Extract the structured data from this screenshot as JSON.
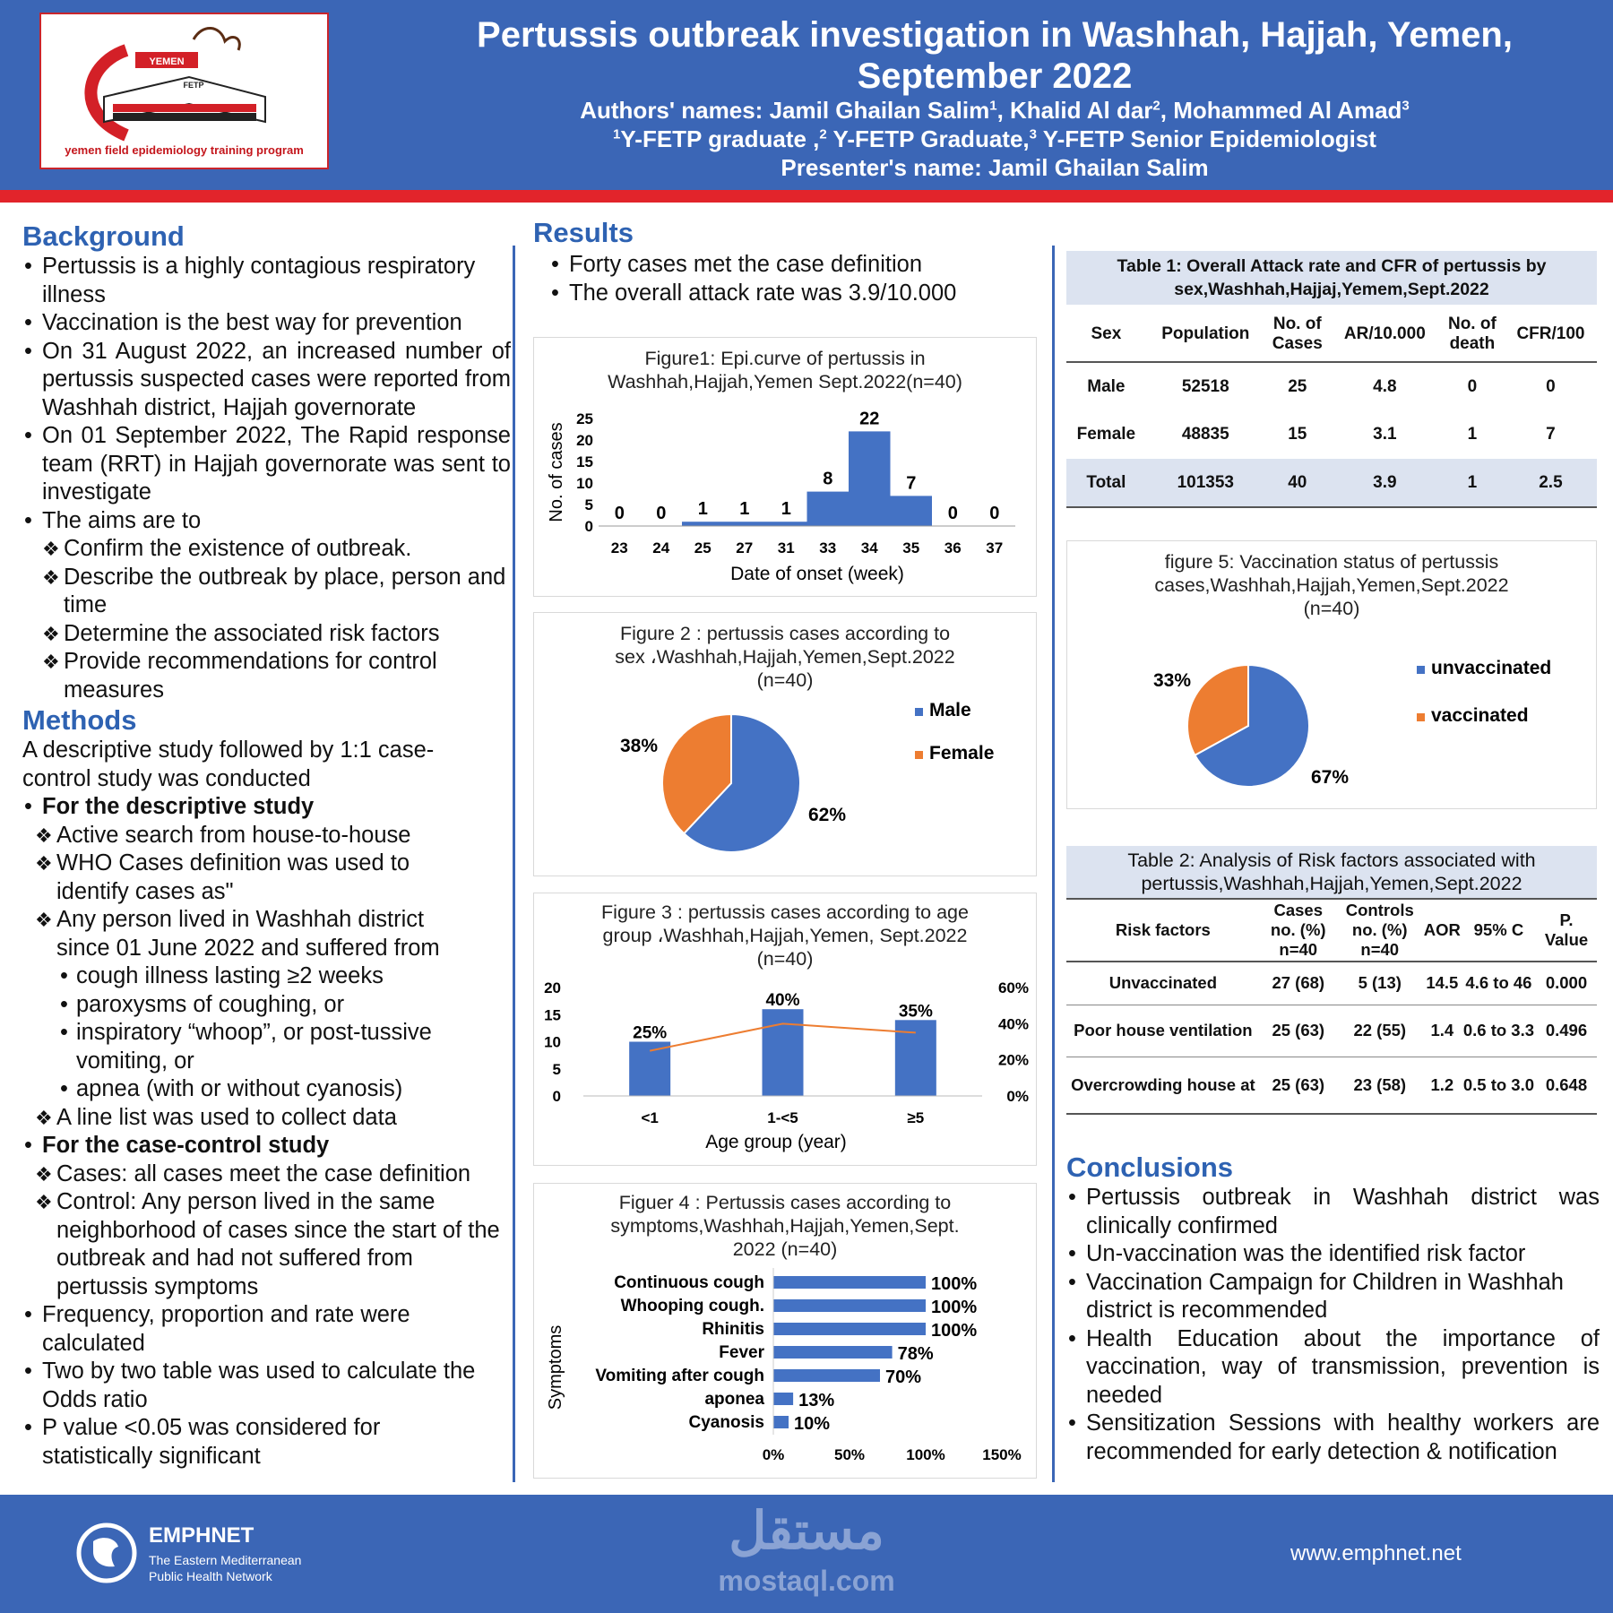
{
  "header": {
    "logo_text": "YEMEN",
    "logo_tag": "FETP",
    "logo_caption": "yemen field epidemiology training program",
    "title_line1": "Pertussis outbreak investigation in Washhah, Hajjah, Yemen,",
    "title_line2": "September 2022",
    "authors_prefix": "Authors' names: ",
    "authors": [
      {
        "name": "Jamil Ghailan Salim",
        "sup": "1",
        "sep": ", "
      },
      {
        "name": "Khalid Al dar",
        "sup": "2",
        "sep": ", "
      },
      {
        "name": "Mohammed Al Amad",
        "sup": "3",
        "sep": ""
      }
    ],
    "affil": [
      {
        "sup": "1",
        "text": "Y-FETP graduate ,"
      },
      {
        "sup": "2",
        "text": " Y-FETP Graduate,"
      },
      {
        "sup": "3",
        "text": " Y-FETP Senior Epidemiologist"
      }
    ],
    "presenter": "Presenter's name: Jamil Ghailan Salim"
  },
  "background": {
    "heading": "Background",
    "b1": "Pertussis is a highly contagious respiratory illness",
    "b2": "Vaccination is the best way for prevention",
    "b3": "On 31 August 2022, an increased number of pertussis suspected cases were reported from Washhah district, Hajjah governorate",
    "b4": "On 01 September 2022, The Rapid response team (RRT) in Hajjah governorate was sent to investigate",
    "b5": "The aims are to",
    "aims": [
      "Confirm the existence of outbreak.",
      "Describe the outbreak by place, person and time",
      "Determine the associated risk factors",
      "Provide recommendations for control measures"
    ]
  },
  "methods": {
    "heading": "Methods",
    "intro": "A descriptive study followed by 1:1 case-control study was conducted",
    "desc_head": "For the descriptive study",
    "d1": "Active search from house-to-house",
    "d2": "WHO Cases definition was used to identify cases as\"",
    "d3": "Any person lived in Washhah district since 01 June 2022 and suffered from",
    "s1": "cough illness lasting ≥2 weeks",
    "s2": "paroxysms of coughing, or",
    "s3": " inspiratory “whoop”, or post-tussive vomiting, or",
    "s4": "apnea (with or without cyanosis)",
    "d4": "A line list was used to collect data",
    "cc_head": "For the case-control study",
    "c1": "Cases: all cases meet the case definition",
    "c2": "Control: Any person lived in the same neighborhood of cases since the start of the outbreak and had not suffered from pertussis   symptoms",
    "m1": "Frequency, proportion and rate were calculated",
    "m2": "Two by two table was used to calculate the Odds ratio",
    "m3": "P value <0.05 was considered for statistically significant"
  },
  "results": {
    "heading": "Results",
    "r1": "Forty cases met the case definition",
    "r2": "The overall attack rate was 3.9/10.000"
  },
  "fig1": {
    "title1": "Figure1: Epi.curve of pertussis in",
    "title2": "Washhah,Hajjah,Yemen Sept.2022(n=40)",
    "ylabel": "No. of cases",
    "xlabel": "Date of onset (week)",
    "yticks": [
      "25",
      "20",
      "15",
      "10",
      "5",
      "0"
    ]
  },
  "fig2": {
    "title1": "Figure 2 : pertussis cases according to",
    "title2": "sex ،Washhah,Hajjah,Yemen,Sept.2022",
    "title3": "(n=40)"
  },
  "fig3": {
    "title1": "Figure 3 : pertussis cases according to  age",
    "title2": "group ،Washhah,Hajjah,Yemen, Sept.2022",
    "title3": "(n=40)",
    "xlabel": "Age group (year)",
    "yticks": [
      "20",
      "15",
      "10",
      "5",
      "0"
    ],
    "y2ticks": [
      "60%",
      "40%",
      "20%",
      "0%"
    ]
  },
  "fig4": {
    "title1": "Figuer 4 : Pertussis cases according to",
    "title2": "symptoms,Washhah,Hajjah,Yemen,Sept.",
    "title3": "2022 (n=40)",
    "ylabel": "Symptoms",
    "xticks": [
      "0%",
      "50%",
      "100%",
      "150%"
    ]
  },
  "fig5": {
    "title1": "figure 5: Vaccination status of pertussis",
    "title2": "cases,Washhah,Hajjah,Yemen,Sept.2022",
    "title3": "(n=40)"
  },
  "table1": {
    "title": "Table 1: Overall Attack rate and CFR of pertussis by sex,Washhah,Hajjaj,Yemem,Sept.2022",
    "headers": [
      "Sex",
      "Population",
      "No. of Cases",
      "AR/10.000",
      "No. of death",
      "CFR/100"
    ],
    "rows": [
      [
        "Male",
        "52518",
        "25",
        "4.8",
        "0",
        "0"
      ],
      [
        "Female",
        "48835",
        "15",
        "3.1",
        "1",
        "7"
      ],
      [
        "Total",
        "101353",
        "40",
        "3.9",
        "1",
        "2.5"
      ]
    ]
  },
  "table2": {
    "title": "Table 2:  Analysis of Risk factors associated with pertussis,Washhah,Hajjah,Yemen,Sept.2022",
    "headers": [
      "Risk factors",
      "Cases no. (%) n=40",
      "Controls no. (%) n=40",
      "AOR",
      "95% C",
      "P. Value"
    ],
    "rows": [
      [
        "Unvaccinated",
        "27 (68)",
        "5 (13)",
        "14.5",
        "4.6 to 46",
        "0.000"
      ],
      [
        "Poor house ventilation",
        "25 (63)",
        "22 (55)",
        "1.4",
        "0.6 to 3.3",
        "0.496"
      ],
      [
        "Overcrowding house at",
        "25 (63)",
        "23 (58)",
        "1.2",
        "0.5 to 3.0",
        "0.648"
      ]
    ]
  },
  "conclusions": {
    "heading": "Conclusions",
    "c1": "Pertussis outbreak in Washhah district was clinically confirmed",
    "c2": "Un-vaccination was the identified risk factor",
    "c3": "Vaccination Campaign for Children in Washhah district is recommended",
    "c4": "Health Education about the importance of vaccination, way of transmission, prevention is needed",
    "c5": "Sensitization Sessions with healthy workers are recommended for early detection & notification"
  },
  "footer": {
    "org": "EMPHNET",
    "org_line1": "The Eastern Mediterranean",
    "org_line2": "Public Health Network",
    "watermark_ar": "مستقل",
    "watermark": "mostaql.com",
    "url": "www.emphnet.net"
  },
  "colors": {
    "blue": "#4472c4",
    "orange": "#ed7d31",
    "heading": "#2e62b2",
    "header_bg": "#3b66b6",
    "red": "#e2242b"
  },
  "chart_data": [
    {
      "type": "bar",
      "title": "Figure1: Epi.curve of pertussis in Washhah,Hajjah,Yemen Sept.2022(n=40)",
      "categories": [
        "23",
        "24",
        "25",
        "27",
        "31",
        "33",
        "34",
        "35",
        "36",
        "37"
      ],
      "values": [
        0,
        0,
        1,
        1,
        1,
        8,
        22,
        7,
        0,
        0
      ],
      "xlabel": "Date of onset (week)",
      "ylabel": "No. of cases",
      "ylim": [
        0,
        25
      ]
    },
    {
      "type": "pie",
      "title": "Figure 2 : pertussis cases according to sex ،Washhah,Hajjah,Yemen,Sept.2022 (n=40)",
      "labels": [
        "Male",
        "Female"
      ],
      "values": [
        62,
        38
      ],
      "value_labels": [
        "62%",
        "38%"
      ]
    },
    {
      "type": "bar",
      "title": "Figure 3 : pertussis cases according to  age group ،Washhah,Hajjah,Yemen, Sept.2022 (n=40)",
      "categories": [
        "<1",
        "1-<5",
        "≥5"
      ],
      "series": [
        {
          "name": "cases",
          "values": [
            10,
            16,
            14
          ]
        },
        {
          "name": "percent",
          "values": [
            25,
            40,
            35
          ],
          "labels": [
            "25%",
            "40%",
            "35%"
          ]
        }
      ],
      "xlabel": "Age group (year)",
      "ylim": [
        0,
        20
      ],
      "y2lim": [
        0,
        60
      ]
    },
    {
      "type": "bar",
      "orientation": "horizontal",
      "title": "Figuer 4 : Pertussis cases according to symptoms,Washhah,Hajjah,Yemen,Sept. 2022 (n=40)",
      "categories": [
        "Continuous cough",
        "Whooping cough.",
        "Rhinitis",
        "Fever",
        "Vomiting after cough",
        "aponea",
        "Cyanosis"
      ],
      "values": [
        100,
        100,
        100,
        78,
        70,
        13,
        10
      ],
      "value_labels": [
        "100%",
        "100%",
        "100%",
        "78%",
        "70%",
        "13%",
        "10%"
      ],
      "ylabel": "Symptoms",
      "xlim": [
        0,
        150
      ]
    },
    {
      "type": "pie",
      "title": "figure 5: Vaccination status of pertussis cases,Washhah,Hajjah,Yemen,Sept.2022 (n=40)",
      "labels": [
        "unvaccinated",
        "vaccinated"
      ],
      "values": [
        67,
        33
      ],
      "value_labels": [
        "67%",
        "33%"
      ]
    }
  ]
}
